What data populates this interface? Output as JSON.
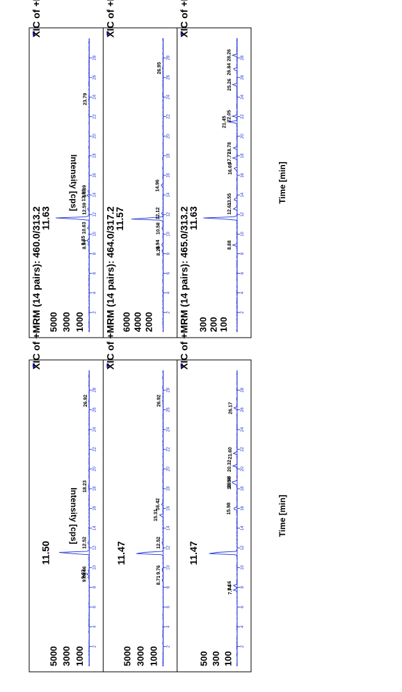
{
  "chart_data": [
    {
      "type": "line",
      "label": "Left chromatogram panel",
      "xlabel": "Time [min]",
      "ylabel": "Intensity [cps]",
      "xlim": [
        0,
        30
      ],
      "x_ticks": [
        "2",
        "4",
        "6",
        "8",
        "10",
        "12",
        "14",
        "16",
        "18",
        "20",
        "22",
        "24",
        "26",
        "28"
      ],
      "subplots": [
        {
          "title": "XIC of +MRM (14 pairs): 460.0/313.2",
          "ylim": [
            0,
            6000
          ],
          "y_ticks": [
            "1000",
            "3000",
            "5000"
          ],
          "main_peak": {
            "rt": "11.50",
            "height": 5500
          },
          "peaks": [
            {
              "label": "9.01",
              "x": 9.01,
              "y": 180
            },
            {
              "label": "9.33",
              "x": 9.33,
              "y": 350
            },
            {
              "label": "9.66",
              "x": 9.66,
              "y": 180
            },
            {
              "label": "12.52",
              "x": 12.52,
              "y": 200
            },
            {
              "label": "18.23",
              "x": 18.23,
              "y": 120
            },
            {
              "label": "26.92",
              "x": 26.92,
              "y": 60
            }
          ]
        },
        {
          "title": "XIC of +MRM (14 pairs): 464.0/317.2",
          "ylim": [
            0,
            6000
          ],
          "y_ticks": [
            "1000",
            "3000",
            "5000"
          ],
          "main_peak": {
            "rt": "11.47",
            "height": 5300
          },
          "peaks": [
            {
              "label": "8.71",
              "x": 8.71,
              "y": 200
            },
            {
              "label": "9.76",
              "x": 9.76,
              "y": 180
            },
            {
              "label": "12.52",
              "x": 12.52,
              "y": 200
            },
            {
              "label": "15.31",
              "x": 15.31,
              "y": 600
            },
            {
              "label": "16.42",
              "x": 16.42,
              "y": 300
            },
            {
              "label": "26.92",
              "x": 26.92,
              "y": 100
            }
          ]
        },
        {
          "title": "XIC of +MRM (14 pairs): 465.0/313.2",
          "ylim": [
            0,
            650
          ],
          "y_ticks": [
            "100",
            "300",
            "500"
          ],
          "main_peak": {
            "rt": "11.47",
            "height": 600
          },
          "peaks": [
            {
              "label": "7.74",
              "x": 7.74,
              "y": 60
            },
            {
              "label": "8.16",
              "x": 8.16,
              "y": 70
            },
            {
              "label": "15.98",
              "x": 15.98,
              "y": 80
            },
            {
              "label": "18.54",
              "x": 18.54,
              "y": 70
            },
            {
              "label": "18.68",
              "x": 18.68,
              "y": 75
            },
            {
              "label": "20.32",
              "x": 20.32,
              "y": 70
            },
            {
              "label": "21.60",
              "x": 21.6,
              "y": 60
            },
            {
              "label": "26.17",
              "x": 26.17,
              "y": 50
            }
          ]
        }
      ]
    },
    {
      "type": "line",
      "label": "Right chromatogram panel",
      "xlabel": "Time [min]",
      "ylabel": "Intensity [cps]",
      "xlim": [
        0,
        30
      ],
      "x_ticks": [
        "2",
        "4",
        "6",
        "8",
        "10",
        "12",
        "14",
        "16",
        "18",
        "20",
        "22",
        "24",
        "26",
        "28"
      ],
      "subplots": [
        {
          "title": "XIC of +MRM (14 pairs): 460.0/313.2",
          "ylim": [
            0,
            6000
          ],
          "y_ticks": [
            "1000",
            "3000",
            "5000"
          ],
          "main_peak": {
            "rt": "11.63",
            "height": 5500
          },
          "peaks": [
            {
              "label": "8.94",
              "x": 8.94,
              "y": 200
            },
            {
              "label": "9.35",
              "x": 9.35,
              "y": 350
            },
            {
              "label": "10.63",
              "x": 10.63,
              "y": 250
            },
            {
              "label": "12.59",
              "x": 12.59,
              "y": 220
            },
            {
              "label": "13.96",
              "x": 13.96,
              "y": 300
            },
            {
              "label": "14.39",
              "x": 14.39,
              "y": 200
            },
            {
              "label": "23.79",
              "x": 23.79,
              "y": 100
            }
          ]
        },
        {
          "title": "XIC of +MRM (14 pairs): 464.0/317.2",
          "ylim": [
            0,
            7000
          ],
          "y_ticks": [
            "2000",
            "4000",
            "6000"
          ],
          "main_peak": {
            "rt": "11.57",
            "height": 6400
          },
          "peaks": [
            {
              "label": "8.29",
              "x": 8.29,
              "y": 200
            },
            {
              "label": "8.94",
              "x": 8.94,
              "y": 300
            },
            {
              "label": "10.58",
              "x": 10.58,
              "y": 250
            },
            {
              "label": "12.12",
              "x": 12.12,
              "y": 300
            },
            {
              "label": "14.96",
              "x": 14.96,
              "y": 400
            },
            {
              "label": "26.95",
              "x": 26.95,
              "y": 100
            }
          ]
        },
        {
          "title": "XIC of +MRM (14 pairs): 465.0/313.2",
          "ylim": [
            0,
            380
          ],
          "y_ticks": [
            "100",
            "200",
            "300"
          ],
          "main_peak": {
            "rt": "11.63",
            "height": 350
          },
          "peaks": [
            {
              "label": "8.88",
              "x": 8.88,
              "y": 40
            },
            {
              "label": "12.61",
              "x": 12.61,
              "y": 40
            },
            {
              "label": "13.55",
              "x": 13.55,
              "y": 40
            },
            {
              "label": "16.69",
              "x": 16.69,
              "y": 35
            },
            {
              "label": "17.77",
              "x": 17.77,
              "y": 40
            },
            {
              "label": "18.78",
              "x": 18.78,
              "y": 40
            },
            {
              "label": "21.45",
              "x": 21.45,
              "y": 90
            },
            {
              "label": "22.05",
              "x": 22.05,
              "y": 45
            },
            {
              "label": "25.26",
              "x": 25.26,
              "y": 40
            },
            {
              "label": "26.84",
              "x": 26.84,
              "y": 45
            },
            {
              "label": "28.26",
              "x": 28.26,
              "y": 45
            }
          ]
        }
      ]
    }
  ]
}
